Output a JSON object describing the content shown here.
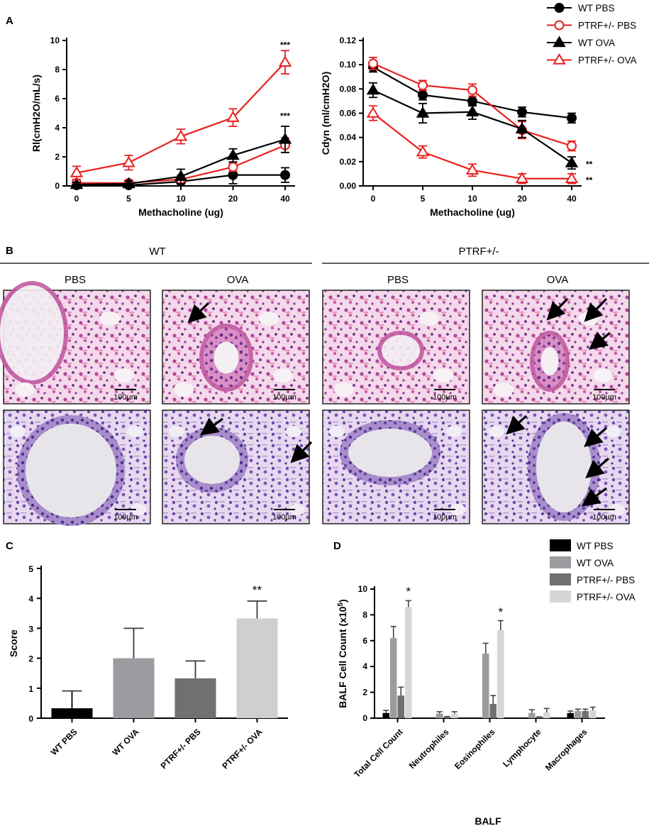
{
  "panel_letters": {
    "a": "A",
    "b": "B",
    "c": "C",
    "d": "D"
  },
  "legend_top": {
    "items": [
      {
        "label": "WT PBS",
        "color": "#000000",
        "marker": "circle",
        "fill": "filled"
      },
      {
        "label": "PTRF+/- PBS",
        "color": "#e8211f",
        "marker": "circle",
        "fill": "open"
      },
      {
        "label": "WT OVA",
        "color": "#000000",
        "marker": "triangle",
        "fill": "filled"
      },
      {
        "label": "PTRF+/- OVA",
        "color": "#e8211f",
        "marker": "triangle",
        "fill": "open"
      }
    ]
  },
  "histology": {
    "groups": [
      {
        "label": "WT",
        "columns": [
          "PBS",
          "OVA"
        ]
      },
      {
        "label": "PTRF+/-",
        "columns": [
          "PBS",
          "OVA"
        ]
      }
    ],
    "scale_bar": "100µm",
    "arrow_counts": {
      "row1": [
        0,
        1,
        0,
        3
      ],
      "row2": [
        0,
        2,
        0,
        4
      ]
    }
  },
  "chart_data": [
    {
      "id": "A1",
      "type": "line",
      "categories": [
        "0",
        "5",
        "10",
        "20",
        "40"
      ],
      "xlabel": "Methacholine (ug)",
      "ylabel": "Rl(cmH2O/mL/s)",
      "ylim": [
        0,
        10
      ],
      "yticks": [
        "0",
        "2",
        "4",
        "6",
        "8",
        "10"
      ],
      "series": [
        {
          "name": "WT PBS",
          "values": [
            0.05,
            0.05,
            0.3,
            0.75,
            0.75
          ],
          "err": [
            0.1,
            0.1,
            0.3,
            0.6,
            0.5
          ],
          "color": "#000000",
          "marker": "circle",
          "fill": "filled"
        },
        {
          "name": "PTRF+/- PBS",
          "values": [
            0.2,
            0.2,
            0.45,
            1.3,
            2.8
          ],
          "err": [
            0.2,
            0.2,
            0.3,
            0.3,
            0.5
          ],
          "color": "#e8211f",
          "marker": "circle",
          "fill": "open"
        },
        {
          "name": "WT OVA",
          "values": [
            0.1,
            0.15,
            0.65,
            2.1,
            3.2
          ],
          "err": [
            0.15,
            0.2,
            0.5,
            0.45,
            0.9
          ],
          "color": "#000000",
          "marker": "triangle",
          "fill": "filled"
        },
        {
          "name": "PTRF+/- OVA",
          "values": [
            0.9,
            1.6,
            3.4,
            4.7,
            8.5
          ],
          "err": [
            0.45,
            0.5,
            0.5,
            0.6,
            0.8
          ],
          "color": "#e8211f",
          "marker": "triangle",
          "fill": "open"
        }
      ],
      "annotations": [
        {
          "text": "***",
          "x": "40",
          "y": 9.5
        },
        {
          "text": "***",
          "x": "40",
          "y": 4.6
        }
      ]
    },
    {
      "id": "A2",
      "type": "line",
      "categories": [
        "0",
        "5",
        "10",
        "20",
        "40"
      ],
      "xlabel": "Methacholine (ug)",
      "ylabel": "Cdyn (ml/cmH2O)",
      "ylim": [
        0,
        0.12
      ],
      "yticks": [
        "0.00",
        "0.02",
        "0.04",
        "0.06",
        "0.08",
        "0.10",
        "0.12"
      ],
      "series": [
        {
          "name": "WT PBS",
          "values": [
            0.098,
            0.075,
            0.07,
            0.061,
            0.056
          ],
          "err": [
            0.004,
            0.004,
            0.004,
            0.004,
            0.004
          ],
          "color": "#000000",
          "marker": "circle",
          "fill": "filled"
        },
        {
          "name": "PTRF+/- PBS",
          "values": [
            0.101,
            0.083,
            0.079,
            0.046,
            0.033
          ],
          "err": [
            0.005,
            0.004,
            0.005,
            0.007,
            0.004
          ],
          "color": "#e8211f",
          "marker": "circle",
          "fill": "open"
        },
        {
          "name": "WT OVA",
          "values": [
            0.079,
            0.06,
            0.061,
            0.047,
            0.019
          ],
          "err": [
            0.006,
            0.008,
            0.006,
            0.007,
            0.005
          ],
          "color": "#000000",
          "marker": "triangle",
          "fill": "filled"
        },
        {
          "name": "PTRF+/- OVA",
          "values": [
            0.06,
            0.028,
            0.013,
            0.006,
            0.006
          ],
          "err": [
            0.006,
            0.005,
            0.005,
            0.004,
            0.004
          ],
          "color": "#e8211f",
          "marker": "triangle",
          "fill": "open"
        }
      ],
      "annotations": [
        {
          "text": "**",
          "x": "40",
          "y": 0.019
        },
        {
          "text": "**",
          "x": "40",
          "y": 0.006
        }
      ]
    },
    {
      "id": "C",
      "type": "bar",
      "categories": [
        "WT PBS",
        "WT OVA",
        "PTRF+/- PBS",
        "PTRF+/- OVA"
      ],
      "ylabel": "Score",
      "xlabel": "",
      "ylim": [
        0,
        5
      ],
      "yticks": [
        "0",
        "1",
        "2",
        "3",
        "4",
        "5"
      ],
      "values": [
        0.33,
        2.0,
        1.33,
        3.33
      ],
      "err": [
        0.58,
        1.0,
        0.58,
        0.58
      ],
      "colors": [
        "#000000",
        "#9c9ca0",
        "#707072",
        "#cfcfd1"
      ],
      "annotations": [
        {
          "text": "**",
          "category": "PTRF+/- OVA",
          "y": 4.15
        }
      ]
    },
    {
      "id": "D",
      "type": "bar",
      "categories": [
        "Total Cell Count",
        "Neutrophiles",
        "Eosinophiles",
        "Lymphocyte",
        "Macrophages"
      ],
      "xlabel": "BALF",
      "ylabel": "BALF Cell Count (x10",
      "ylabel_sup": "5",
      "ylabel_end": ")",
      "ylim": [
        0,
        10
      ],
      "yticks": [
        "0",
        "2",
        "4",
        "6",
        "8",
        "10"
      ],
      "series": [
        {
          "name": "WT PBS",
          "color": "#000000",
          "values": [
            0.4,
            0.0,
            0.0,
            0.0,
            0.4
          ],
          "err": [
            0.2,
            0.0,
            0.0,
            0.0,
            0.15
          ]
        },
        {
          "name": "WT OVA",
          "color": "#9c9ca0",
          "values": [
            6.2,
            0.35,
            5.0,
            0.4,
            0.55
          ],
          "err": [
            0.9,
            0.15,
            0.8,
            0.25,
            0.15
          ]
        },
        {
          "name": "PTRF+/- PBS",
          "color": "#707072",
          "values": [
            1.75,
            0.08,
            1.1,
            0.05,
            0.55
          ],
          "err": [
            0.65,
            0.05,
            0.65,
            0.05,
            0.15
          ]
        },
        {
          "name": "PTRF+/- OVA",
          "color": "#d6d6d8",
          "values": [
            8.6,
            0.35,
            6.8,
            0.45,
            0.6
          ],
          "err": [
            0.5,
            0.15,
            0.75,
            0.3,
            0.25
          ]
        }
      ],
      "annotations": [
        {
          "text": "*",
          "category": "Total Cell Count",
          "y": 9.5
        },
        {
          "text": "*",
          "category": "Eosinophiles",
          "y": 7.9
        }
      ]
    }
  ]
}
